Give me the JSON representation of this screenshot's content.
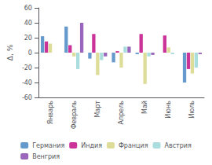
{
  "chart_data": {
    "type": "bar",
    "categories": [
      "Январь",
      "Февраль",
      "Март",
      "Апрель",
      "Май",
      "Июнь",
      "Июль"
    ],
    "series": [
      {
        "name": "Германия",
        "color": "#6699cc",
        "values": [
          22,
          35,
          -8,
          -13,
          -2,
          0,
          -40
        ]
      },
      {
        "name": "Индия",
        "color": "#cc3399",
        "values": [
          15,
          10,
          25,
          2,
          25,
          23,
          -22
        ]
      },
      {
        "name": "Франция",
        "color": "#dddd99",
        "values": [
          12,
          -5,
          -30,
          -20,
          -42,
          7,
          -28
        ]
      },
      {
        "name": "Австрия",
        "color": "#aadddd",
        "values": [
          0,
          -22,
          -10,
          8,
          -5,
          -2,
          -20
        ]
      },
      {
        "name": "Венгрия",
        "color": "#9966bb",
        "values": [
          0,
          40,
          -5,
          8,
          -3,
          0,
          -2
        ]
      }
    ],
    "ylabel": "Δ, %",
    "ylim": [
      -60,
      60
    ],
    "yticks": [
      -60,
      -40,
      -20,
      0,
      20,
      40,
      60
    ],
    "grid": false,
    "legend": "bottom"
  }
}
